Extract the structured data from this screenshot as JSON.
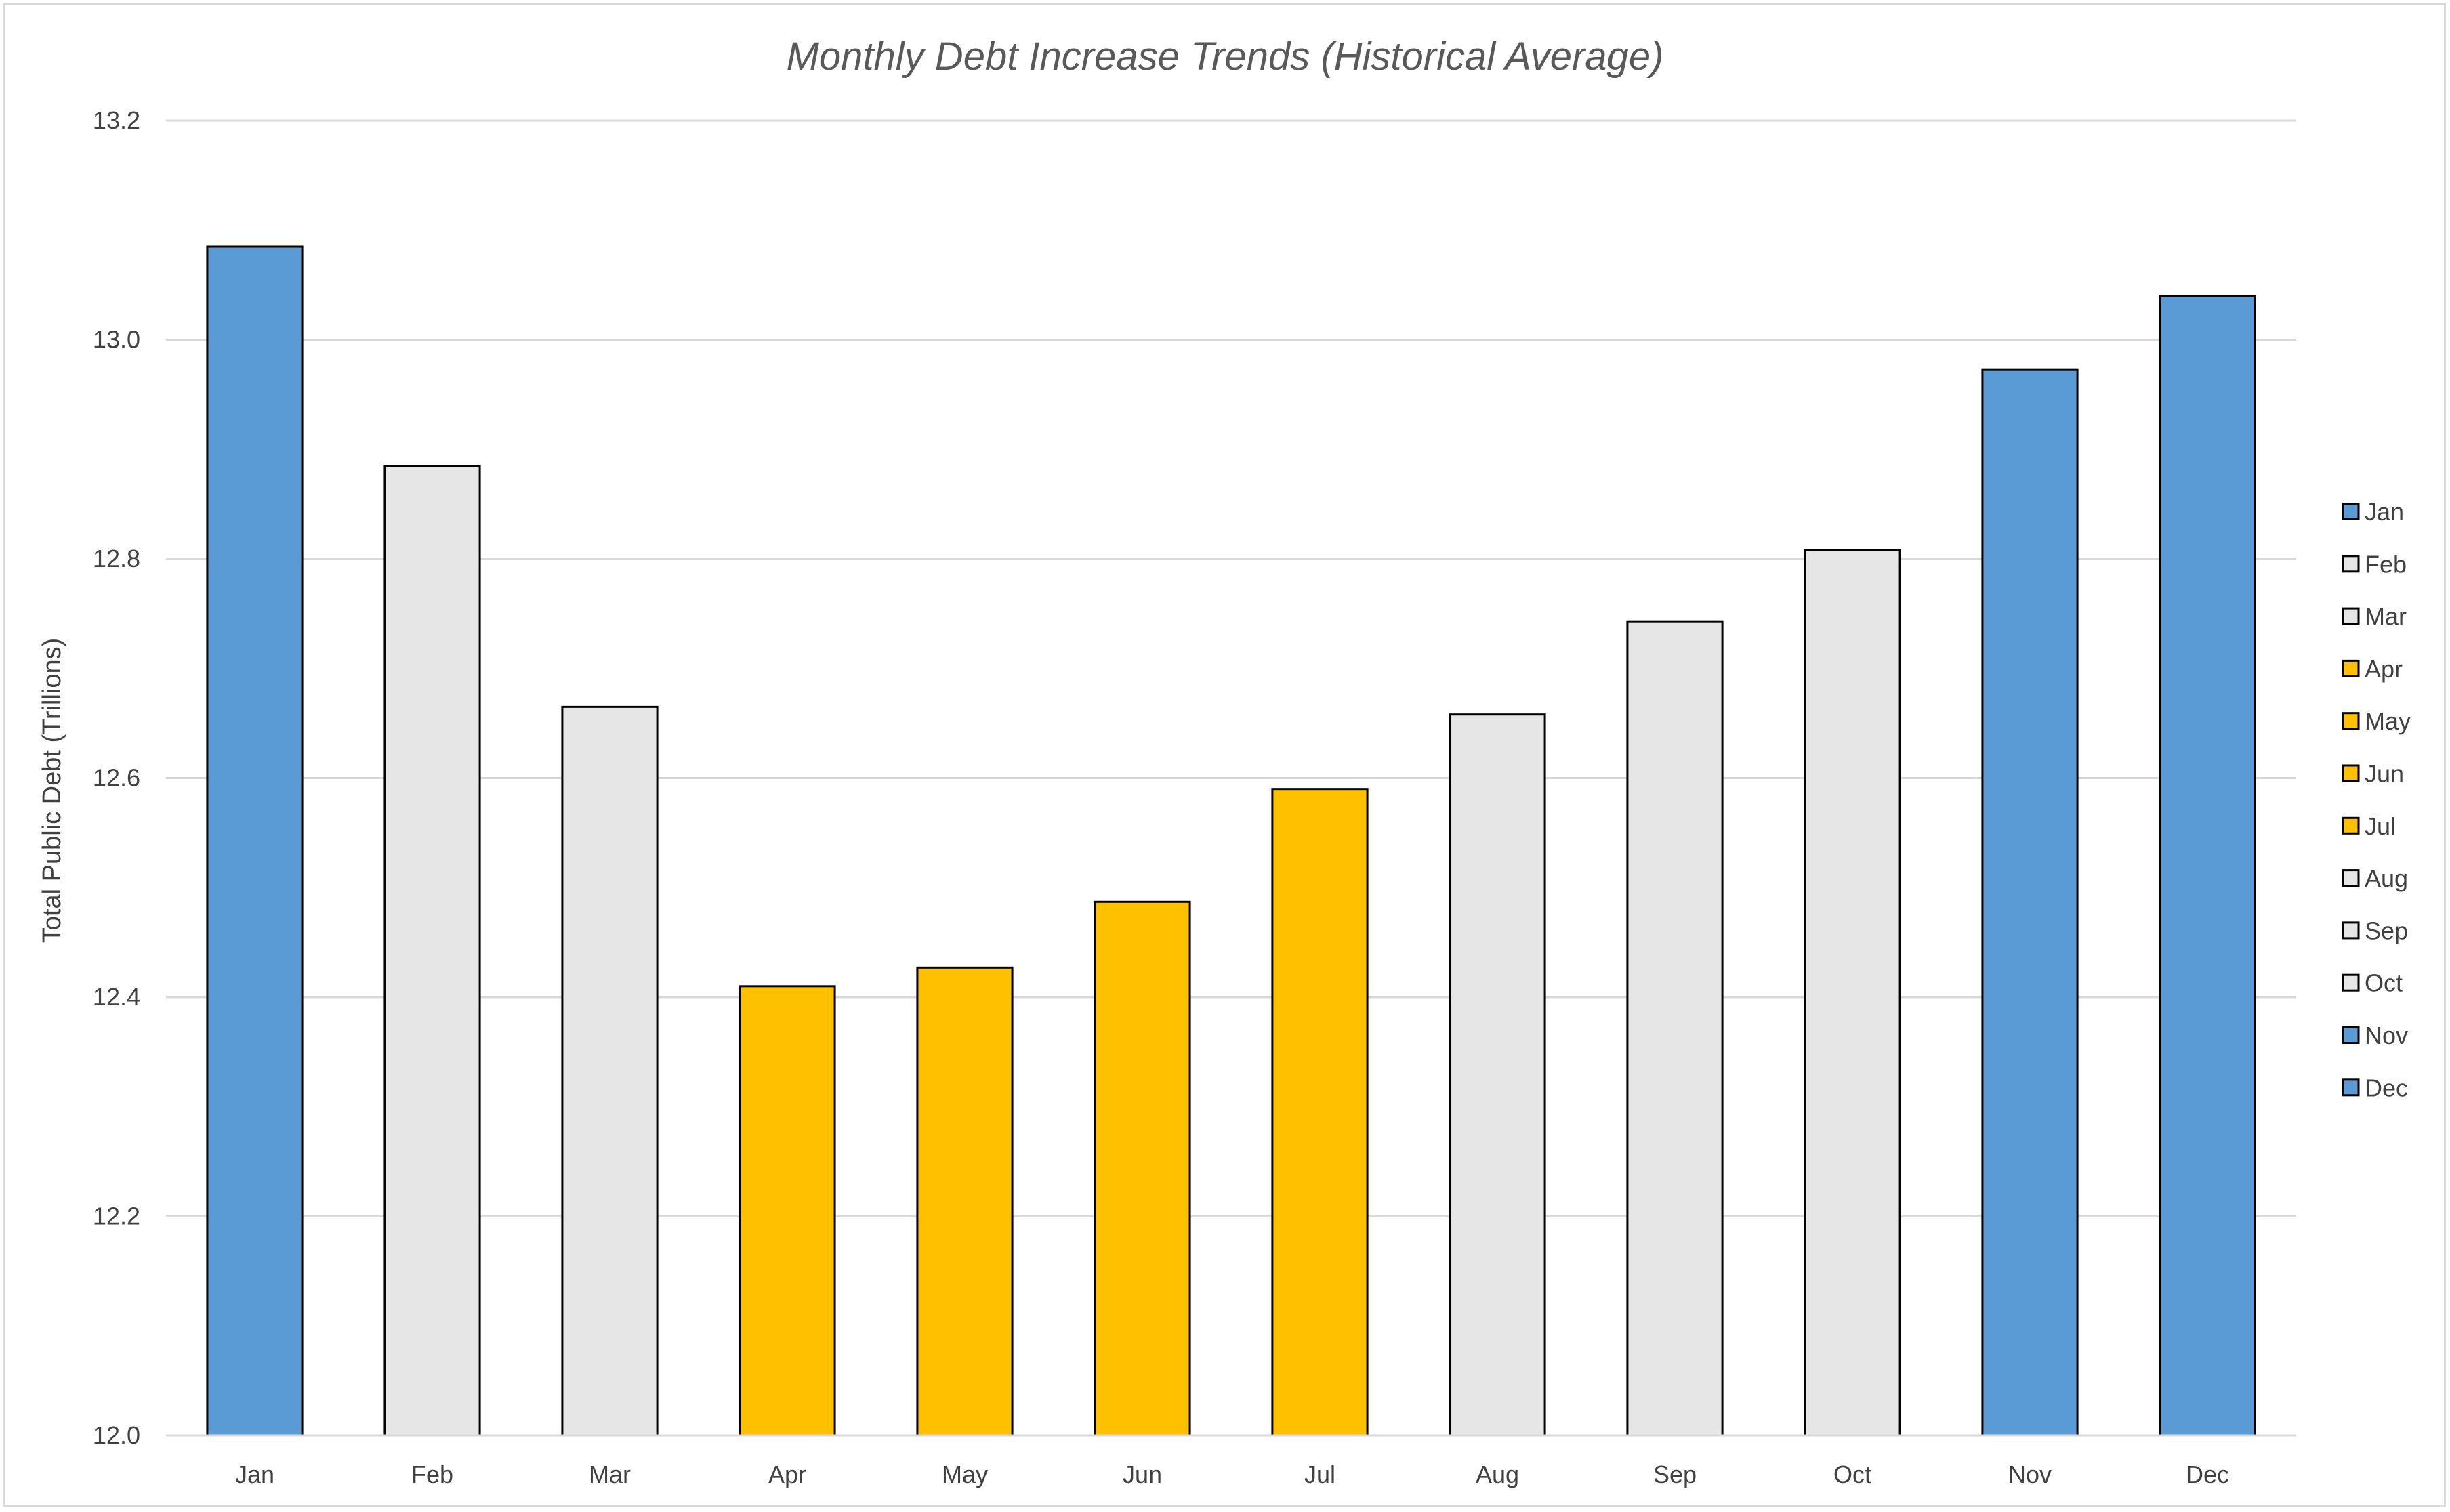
{
  "chart_data": {
    "type": "bar",
    "title": "Monthly Debt Increase Trends (Historical Average)",
    "xlabel": "",
    "ylabel": "Total Public Debt (Trillions)",
    "ylim": [
      12.0,
      13.2
    ],
    "yticks": [
      12.0,
      12.2,
      12.4,
      12.6,
      12.8,
      13.0,
      13.2
    ],
    "ytick_labels": [
      "12.0",
      "12.2",
      "12.4",
      "12.6",
      "12.8",
      "13.0",
      "13.2"
    ],
    "grid": true,
    "legend_position": "right",
    "categories": [
      "Jan",
      "Feb",
      "Mar",
      "Apr",
      "May",
      "Jun",
      "Jul",
      "Aug",
      "Sep",
      "Oct",
      "Nov",
      "Dec"
    ],
    "values": [
      13.085,
      12.885,
      12.665,
      12.41,
      12.427,
      12.487,
      12.59,
      12.658,
      12.743,
      12.808,
      12.973,
      13.04
    ],
    "bar_colors": [
      "#5b9bd5",
      "#e7e6e6",
      "#e7e6e6",
      "#ffc000",
      "#ffc000",
      "#ffc000",
      "#ffc000",
      "#e7e6e6",
      "#e7e6e6",
      "#e7e6e6",
      "#5b9bd5",
      "#5b9bd5"
    ],
    "legend_entries": [
      "Jan",
      "Feb",
      "Mar",
      "Apr",
      "May",
      "Jun",
      "Jul",
      "Aug",
      "Sep",
      "Oct",
      "Nov",
      "Dec"
    ]
  },
  "colors": {
    "high_months": "#5b9bd5",
    "mid_months": "#e7e6e6",
    "low_months": "#ffc000",
    "bar_outline": "#000000",
    "gridline": "#d9d9d9",
    "text": "#404040",
    "title": "#595959"
  }
}
